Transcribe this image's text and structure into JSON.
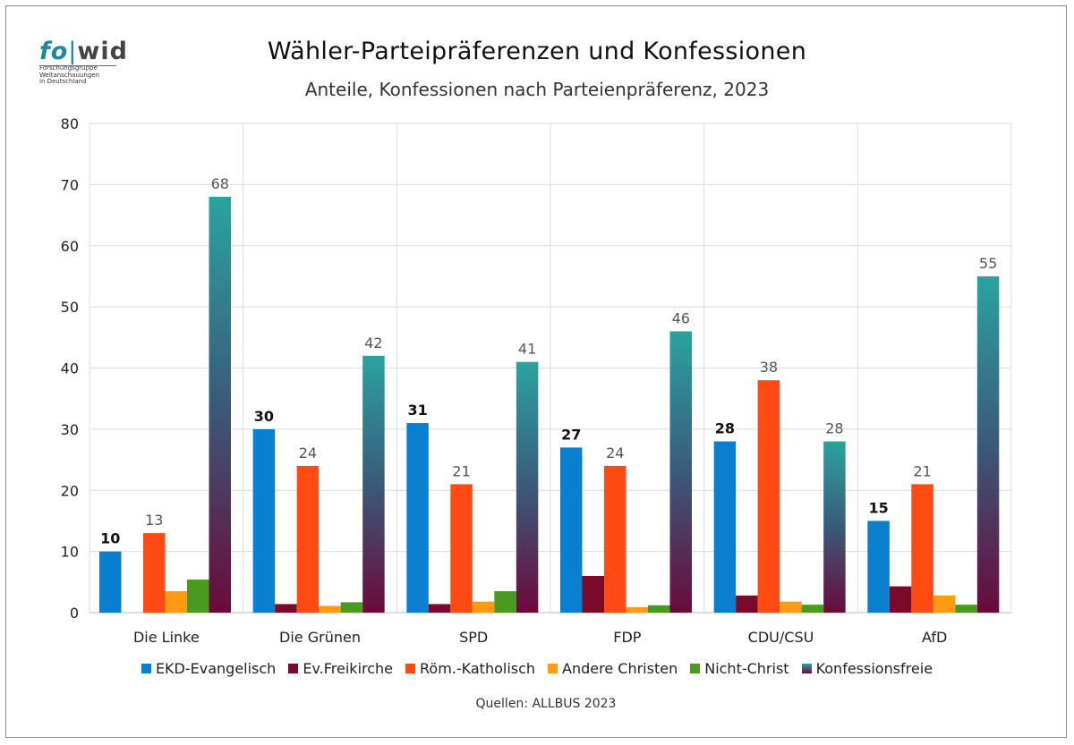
{
  "logo": {
    "word_fo": "fo",
    "word_bar": "|",
    "word_wid": "wid",
    "tagline_1": "Forschungsgruppe",
    "tagline_2": "Weltanschauungen",
    "tagline_3": "in Deutschland"
  },
  "source_note": "Quellen: ALLBUS  2023",
  "chart_data": {
    "type": "bar",
    "title": "Wähler-Parteipräferenzen und Konfessionen",
    "subtitle": "Anteile, Konfessionen nach Parteienpräferenz, 2023",
    "xlabel": "",
    "ylabel": "",
    "ylim": [
      0,
      80
    ],
    "yticks": [
      0,
      10,
      20,
      30,
      40,
      50,
      60,
      70,
      80
    ],
    "grid": true,
    "legend_position": "bottom",
    "categories": [
      "Die Linke",
      "Die Grünen",
      "SPD",
      "FDP",
      "CDU/CSU",
      "AfD"
    ],
    "series": [
      {
        "name": "EKD-Evangelisch",
        "color": "#0a7fd0",
        "values": [
          10,
          30,
          31,
          27,
          28,
          15
        ],
        "labels": [
          "10",
          "30",
          "31",
          "27",
          "28",
          "15"
        ]
      },
      {
        "name": "Ev.Freikirche",
        "color": "#7a0a2a",
        "values": [
          0,
          1.4,
          1.4,
          6,
          2.8,
          4.3
        ],
        "labels": [
          "",
          "",
          "",
          "",
          "",
          ""
        ]
      },
      {
        "name": "Röm.-Katholisch",
        "color": "#ff4a14",
        "values": [
          13,
          24,
          21,
          24,
          38,
          21
        ],
        "labels": [
          "13",
          "24",
          "21",
          "24",
          "38",
          "21"
        ]
      },
      {
        "name": "Andere Christen",
        "color": "#ff9a12",
        "values": [
          3.5,
          1.1,
          1.8,
          0.9,
          1.8,
          2.8
        ],
        "labels": [
          "",
          "",
          "",
          "",
          "",
          ""
        ]
      },
      {
        "name": "Nicht-Christ",
        "color": "#4a9a22",
        "values": [
          5.4,
          1.7,
          3.5,
          1.2,
          1.3,
          1.3
        ],
        "labels": [
          "",
          "",
          "",
          "",
          "",
          ""
        ]
      },
      {
        "name": "Konfessionsfreie",
        "color_top": "#2aa3a0",
        "color_bottom": "#6a0a3a",
        "values": [
          68,
          42,
          41,
          46,
          28,
          55
        ],
        "labels": [
          "68",
          "42",
          "41",
          "46",
          "28",
          "55"
        ]
      }
    ]
  }
}
